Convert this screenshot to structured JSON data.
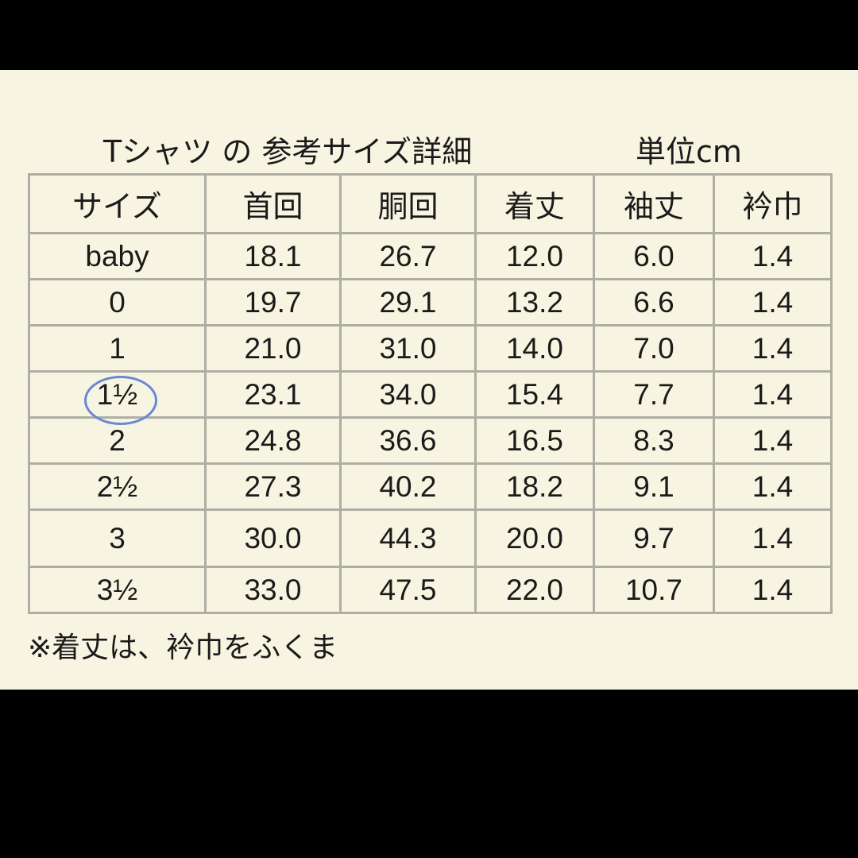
{
  "title": "Tシャツ の 参考サイズ詳細",
  "unit": "単位cm",
  "table": {
    "headers": [
      "サイズ",
      "首回",
      "胴回",
      "着丈",
      "袖丈",
      "衿巾"
    ],
    "rows": [
      [
        "baby",
        "18.1",
        "26.7",
        "12.0",
        "6.0",
        "1.4"
      ],
      [
        "0",
        "19.7",
        "29.1",
        "13.2",
        "6.6",
        "1.4"
      ],
      [
        "1",
        "21.0",
        "31.0",
        "14.0",
        "7.0",
        "1.4"
      ],
      [
        "1½",
        "23.1",
        "34.0",
        "15.4",
        "7.7",
        "1.4"
      ],
      [
        "2",
        "24.8",
        "36.6",
        "16.5",
        "8.3",
        "1.4"
      ],
      [
        "2½",
        "27.3",
        "40.2",
        "18.2",
        "9.1",
        "1.4"
      ],
      [
        "3",
        "30.0",
        "44.3",
        "20.0",
        "9.7",
        "1.4"
      ],
      [
        "3½",
        "33.0",
        "47.5",
        "22.0",
        "10.7",
        "1.4"
      ]
    ]
  },
  "highlighted_size": "1½",
  "highlight_color": "#6a86d6",
  "note": "※着丈は、衿巾をふくま"
}
